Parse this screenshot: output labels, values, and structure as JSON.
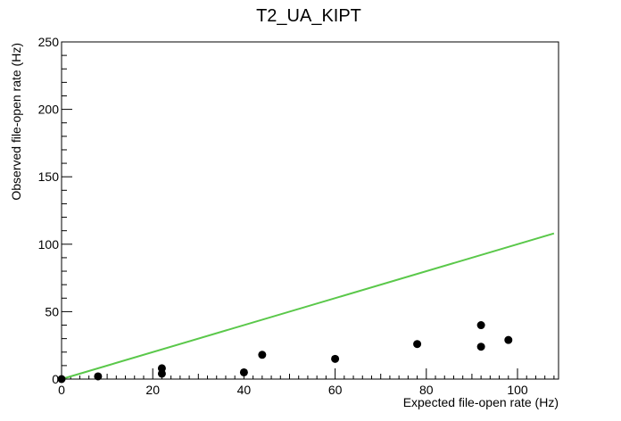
{
  "chart_data": {
    "type": "scatter",
    "title": "T2_UA_KIPT",
    "xlabel": "Expected file-open rate (Hz)",
    "ylabel": "Observed file-open rate (Hz)",
    "xlim": [
      0,
      109
    ],
    "ylim": [
      0,
      250
    ],
    "x_ticks": [
      0,
      20,
      40,
      60,
      80,
      100
    ],
    "y_ticks": [
      0,
      50,
      100,
      150,
      200,
      250
    ],
    "x_tick_labels": [
      "0",
      "20",
      "40",
      "60",
      "80",
      "100"
    ],
    "y_tick_labels": [
      "0",
      "50",
      "100",
      "150",
      "200",
      "250"
    ],
    "grid": false,
    "series": [
      {
        "kind": "points",
        "color": "#000000",
        "x": [
          0,
          8,
          22,
          22,
          40,
          44,
          60,
          78,
          92,
          92,
          98
        ],
        "y": [
          0,
          2,
          4,
          8,
          5,
          18,
          15,
          26,
          40,
          24,
          29
        ]
      },
      {
        "kind": "line",
        "color": "#5ac84a",
        "x": [
          0,
          108
        ],
        "y": [
          0,
          108
        ]
      }
    ]
  }
}
